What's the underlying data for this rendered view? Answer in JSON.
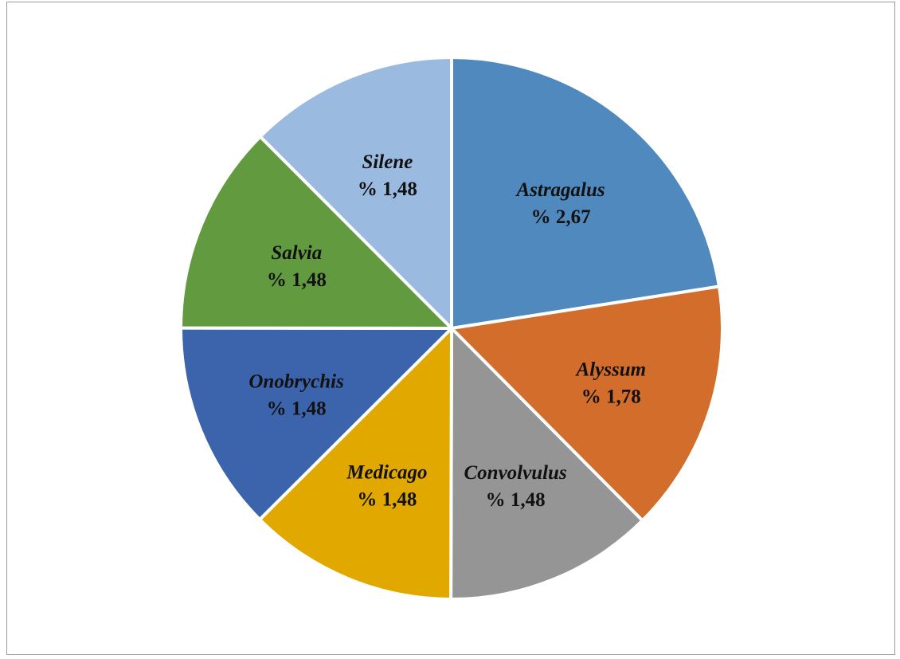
{
  "chart_data": {
    "type": "pie",
    "title": "",
    "legend": "none",
    "slices": [
      {
        "name": "Astragalus",
        "label": "% 2,67",
        "value": 2.67,
        "color": "#4f89bd"
      },
      {
        "name": "Alyssum",
        "label": "% 1,78",
        "value": 1.78,
        "color": "#d36d2b"
      },
      {
        "name": "Convolvulus",
        "label": "% 1,48",
        "value": 1.48,
        "color": "#959595"
      },
      {
        "name": "Medicago",
        "label": "% 1,48",
        "value": 1.48,
        "color": "#e1a800"
      },
      {
        "name": "Onobrychis",
        "label": "% 1,48",
        "value": 1.48,
        "color": "#3c64ad"
      },
      {
        "name": "Salvia",
        "label": "% 1,48",
        "value": 1.48,
        "color": "#629a3f"
      },
      {
        "name": "Silene",
        "label": "% 1,48",
        "value": 1.48,
        "color": "#9bbae0"
      }
    ]
  }
}
